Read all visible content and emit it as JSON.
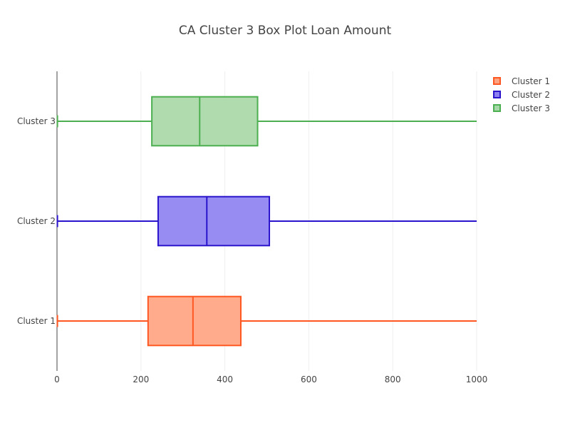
{
  "chart_data": {
    "type": "box",
    "orientation": "horizontal",
    "title": "CA Cluster 3 Box Plot Loan Amount",
    "xlabel": "",
    "ylabel": "",
    "xlim": [
      0,
      1000
    ],
    "xticks": [
      0,
      200,
      400,
      600,
      800,
      1000
    ],
    "grid": "vertical lines only",
    "legend": "top-right",
    "categories": [
      "Cluster 1",
      "Cluster 2",
      "Cluster 3"
    ],
    "series": [
      {
        "name": "Cluster 1",
        "category": "Cluster 1",
        "min": 1,
        "q1": 217,
        "median": 324,
        "q3": 438,
        "max": 1000,
        "line_color": "#ff5722",
        "fill_color": "#ffa27f"
      },
      {
        "name": "Cluster 2",
        "category": "Cluster 2",
        "min": 1,
        "q1": 241,
        "median": 357,
        "q3": 506,
        "max": 1000,
        "line_color": "#2a14cc",
        "fill_color": "#8c80f0"
      },
      {
        "name": "Cluster 3",
        "category": "Cluster 3",
        "min": 1,
        "q1": 226,
        "median": 340,
        "q3": 478,
        "max": 1000,
        "line_color": "#4caf50",
        "fill_color": "#a6d7a6"
      }
    ]
  }
}
